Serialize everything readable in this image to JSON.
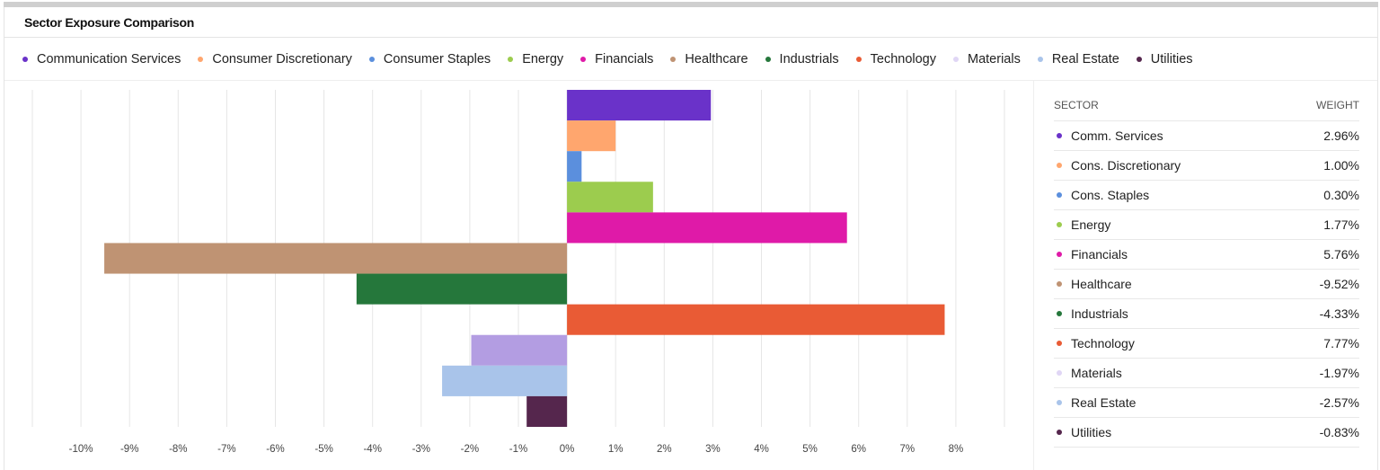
{
  "title": "Sector Exposure Comparison",
  "legend": [
    {
      "label": "Communication Services",
      "color": "#6a32c9"
    },
    {
      "label": "Consumer Discretionary",
      "color": "#ffa66e"
    },
    {
      "label": "Consumer Staples",
      "color": "#5b8fdd"
    },
    {
      "label": "Energy",
      "color": "#9ccc4e"
    },
    {
      "label": "Financials",
      "color": "#df1aa8"
    },
    {
      "label": "Healthcare",
      "color": "#bf9373"
    },
    {
      "label": "Industrials",
      "color": "#25773b"
    },
    {
      "label": "Technology",
      "color": "#e95b35"
    },
    {
      "label": "Materials",
      "color": "#e0d6f5"
    },
    {
      "label": "Real Estate",
      "color": "#a9c4ea"
    },
    {
      "label": "Utilities",
      "color": "#55264d"
    }
  ],
  "table": {
    "headers": {
      "sector": "SECTOR",
      "weight": "WEIGHT"
    },
    "rows": [
      {
        "sector": "Comm. Services",
        "weight": "2.96%"
      },
      {
        "sector": "Cons. Discretionary",
        "weight": "1.00%"
      },
      {
        "sector": "Cons. Staples",
        "weight": "0.30%"
      },
      {
        "sector": "Energy",
        "weight": "1.77%"
      },
      {
        "sector": "Financials",
        "weight": "5.76%"
      },
      {
        "sector": "Healthcare",
        "weight": "-9.52%"
      },
      {
        "sector": "Industrials",
        "weight": "-4.33%"
      },
      {
        "sector": "Technology",
        "weight": "7.77%"
      },
      {
        "sector": "Materials",
        "weight": "-1.97%"
      },
      {
        "sector": "Real Estate",
        "weight": "-2.57%"
      },
      {
        "sector": "Utilities",
        "weight": "-0.83%"
      }
    ]
  },
  "chart_data": {
    "type": "bar",
    "orientation": "horizontal",
    "categories": [
      "Communication Services",
      "Consumer Discretionary",
      "Consumer Staples",
      "Energy",
      "Financials",
      "Healthcare",
      "Industrials",
      "Technology",
      "Materials",
      "Real Estate",
      "Utilities"
    ],
    "values": [
      2.96,
      1.0,
      0.3,
      1.77,
      5.76,
      -9.52,
      -4.33,
      7.77,
      -1.97,
      -2.57,
      -0.83
    ],
    "colors": [
      "#6a32c9",
      "#ffa66e",
      "#5b8fdd",
      "#9ccc4e",
      "#df1aa8",
      "#bf9373",
      "#25773b",
      "#e95b35",
      "#b39de2",
      "#a9c4ea",
      "#55264d"
    ],
    "xlim": [
      -11,
      9
    ],
    "xticks": [
      "-10%",
      "-9%",
      "-8%",
      "-7%",
      "-6%",
      "-5%",
      "-4%",
      "-3%",
      "-2%",
      "-1%",
      "0%",
      "1%",
      "2%",
      "3%",
      "4%",
      "5%",
      "6%",
      "7%",
      "8%"
    ],
    "grid": true,
    "legend": "top"
  }
}
